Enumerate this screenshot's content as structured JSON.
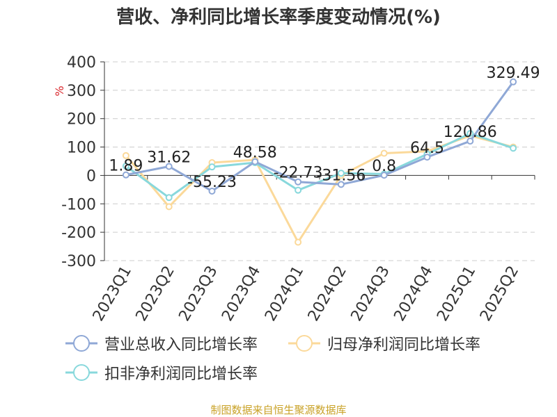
{
  "title": "营收、净利同比增长率季度变动情况(%)",
  "source": "制图数据来自恒生聚源数据库",
  "chart_data": {
    "type": "line",
    "title": "营收、净利同比增长率季度变动情况(%)",
    "ylabel": "%",
    "ylim": [
      -300,
      400
    ],
    "yticks": [
      400,
      300,
      200,
      100,
      0,
      -100,
      -200,
      -300
    ],
    "grid": true,
    "legend_position": "bottom",
    "categories": [
      "2023Q1",
      "2023Q2",
      "2023Q3",
      "2023Q4",
      "2024Q1",
      "2024Q2",
      "2024Q3",
      "2024Q4",
      "2025Q1",
      "2025Q2"
    ],
    "series": [
      {
        "name": "营业总收入同比增长率",
        "color": "#8fa8d6",
        "values": [
          1.89,
          31.62,
          -55.23,
          48.58,
          -22.73,
          -31.56,
          0.8,
          64.5,
          120.86,
          329.49
        ],
        "labels": [
          "1.89",
          "31.62",
          "-55.23",
          "48.58",
          "-22.73",
          "-31.56",
          "0.8",
          "64.5",
          "120.86",
          "329.49"
        ]
      },
      {
        "name": "归母净利润同比增长率",
        "color": "#fbd99a",
        "values": [
          70,
          -110,
          45,
          55,
          -235,
          0,
          78,
          85,
          140,
          100
        ]
      },
      {
        "name": "扣非净利润同比增长率",
        "color": "#88d8dc",
        "values": [
          33,
          -78,
          30,
          45,
          -52,
          8,
          5,
          75,
          148,
          96
        ]
      }
    ]
  }
}
